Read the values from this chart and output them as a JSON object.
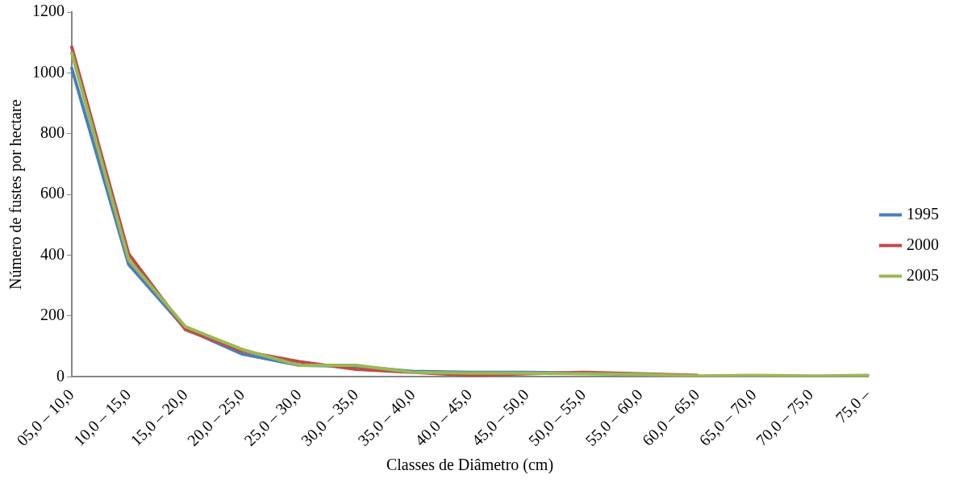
{
  "chart_data": {
    "type": "line",
    "xlabel": "Classes de Diâmetro (cm)",
    "ylabel": "Número de fustes por hectare",
    "categories": [
      "05,0 – 10,0",
      "10,0 – 15,0",
      "15,0 – 20,0",
      "20,0 – 25,0",
      "25,0 – 30,0",
      "30,0 – 35,0",
      "35,0 – 40,0",
      "40,0 – 45,0",
      "45,0 – 50,0",
      "50,0 – 55,0",
      "55,0 – 60,0",
      "60,0 – 65,0",
      "65,0 – 70,0",
      "70,0 – 75,0",
      "75,0 –"
    ],
    "series": [
      {
        "name": "1995",
        "color": "#4a7ebb",
        "values": [
          1015,
          370,
          158,
          75,
          38,
          35,
          18,
          15,
          15,
          12,
          null,
          null,
          null,
          null,
          null
        ]
      },
      {
        "name": "2000",
        "color": "#be4b48",
        "values": [
          1085,
          405,
          155,
          85,
          50,
          25,
          15,
          5,
          10,
          15,
          10,
          5,
          null,
          null,
          null
        ]
      },
      {
        "name": "2005",
        "color": "#98b954",
        "values": [
          1065,
          385,
          165,
          90,
          38,
          38,
          15,
          12,
          12,
          10,
          8,
          3,
          5,
          3,
          5
        ]
      }
    ],
    "ylim": [
      0,
      1200
    ],
    "yticks": [
      0,
      200,
      400,
      600,
      800,
      1000,
      1200
    ],
    "grid": false,
    "legend": "right",
    "marker": "none",
    "line_style": "solid"
  }
}
